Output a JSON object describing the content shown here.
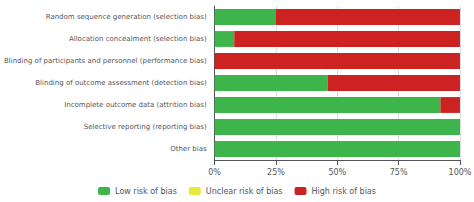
{
  "chart_data": {
    "type": "bar",
    "orientation": "horizontal",
    "stacked": true,
    "categories": [
      "Random sequence generation (selection bias)",
      "Allocation concealment (selection bias)",
      "Blinding of participants and personnel (performance bias)",
      "Blinding of outcome assessment (detection bias)",
      "Incomplete outcome data (attrition bias)",
      "Selective reporting (reporting bias)",
      "Other bias"
    ],
    "series": [
      {
        "name": "Low risk of bias",
        "color": "#3db54a",
        "values": [
          25,
          8,
          0,
          46,
          92,
          100,
          100
        ]
      },
      {
        "name": "Unclear risk of bias",
        "color": "#e8e840",
        "values": [
          0,
          0,
          0,
          0,
          0,
          0,
          0
        ]
      },
      {
        "name": "High risk of bias",
        "color": "#cc2222",
        "values": [
          75,
          92,
          100,
          54,
          8,
          0,
          0
        ]
      }
    ],
    "xlim": [
      0,
      100
    ],
    "xticks": [
      {
        "value": 0,
        "label": "0%"
      },
      {
        "value": 25,
        "label": "25%"
      },
      {
        "value": 50,
        "label": "50%"
      },
      {
        "value": 75,
        "label": "75%"
      },
      {
        "value": 100,
        "label": "100%"
      }
    ],
    "grid": true,
    "legend": "bottom"
  }
}
